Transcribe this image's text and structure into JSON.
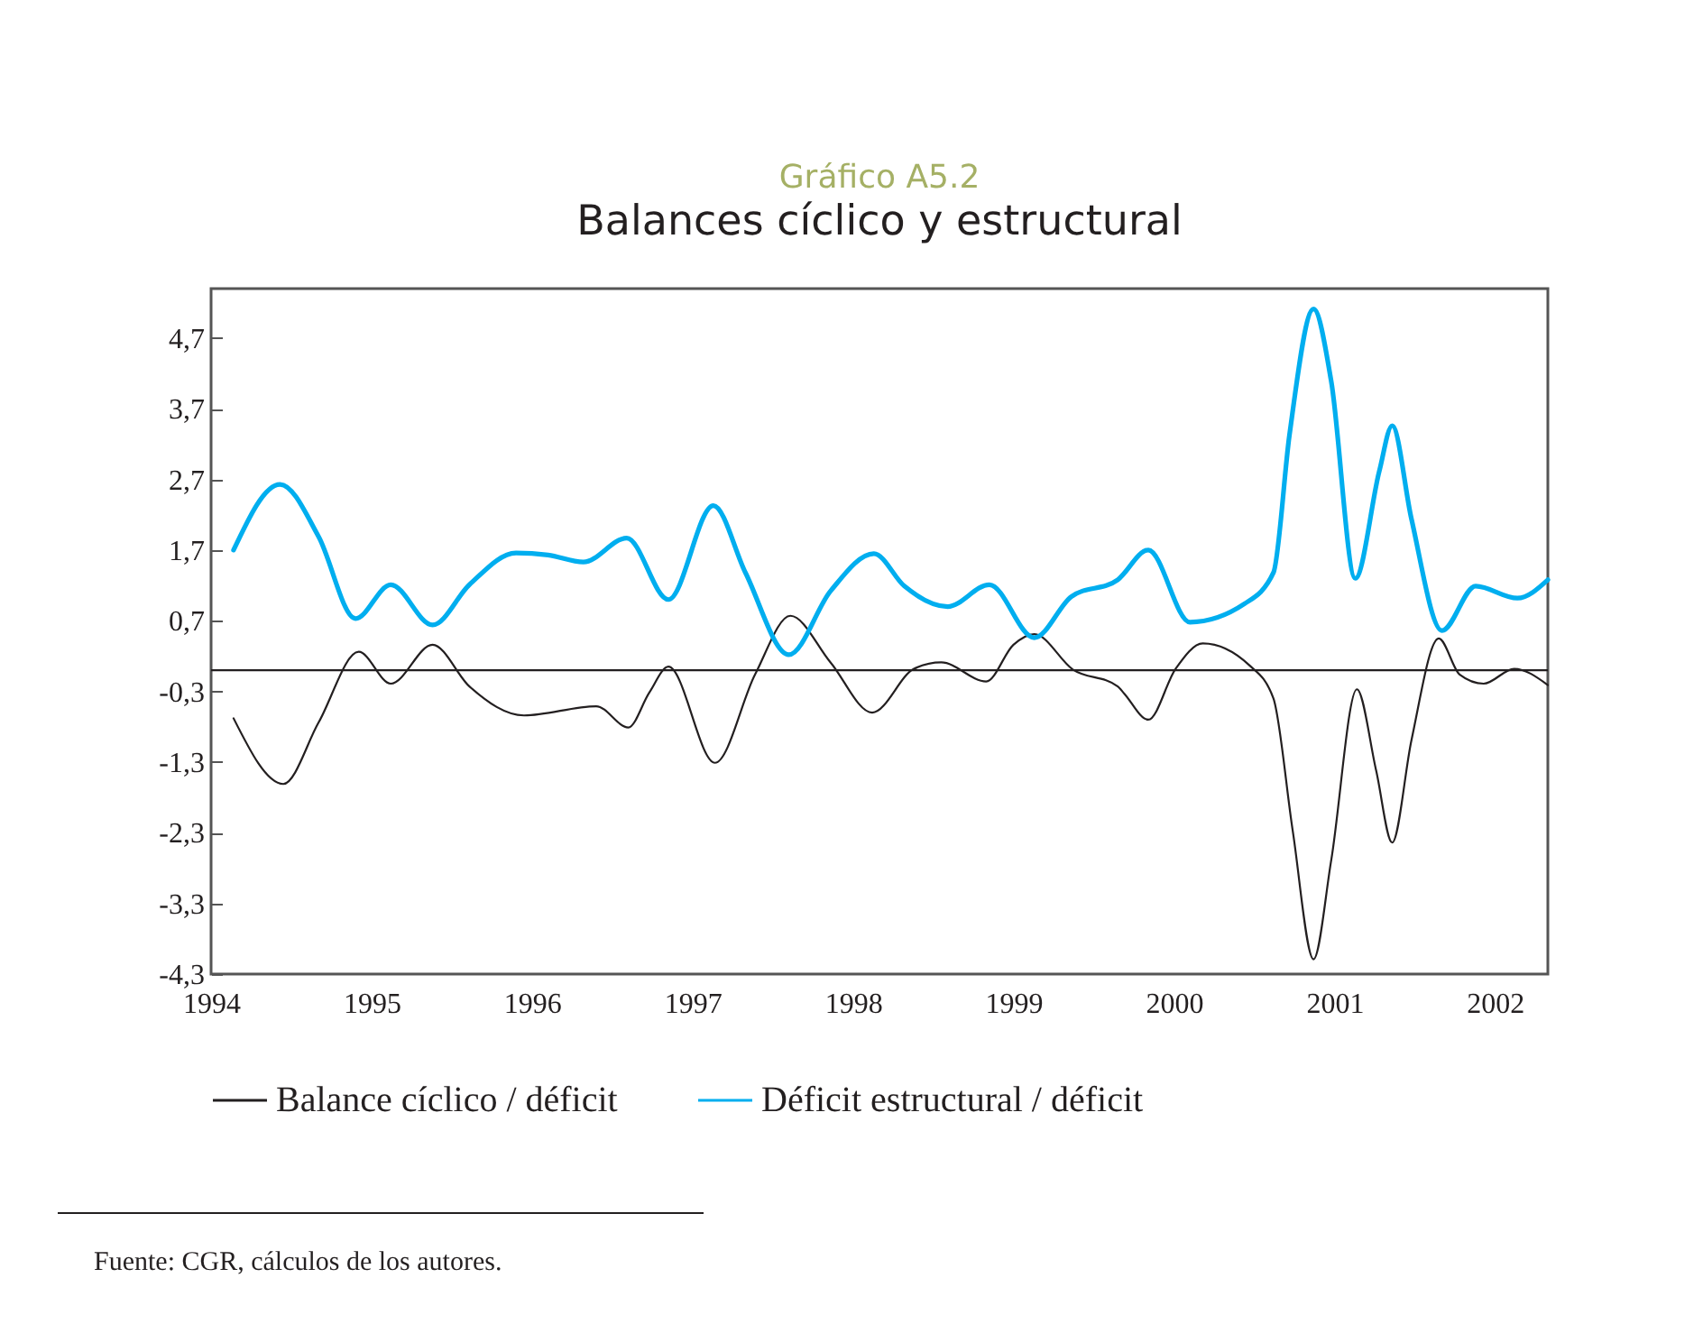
{
  "chart_data": {
    "type": "line",
    "title": "Gráfico A5.2",
    "subtitle": "Balances cíclico y estructural",
    "xlim": [
      1994,
      2002.33
    ],
    "xticks": [
      1994,
      1995,
      1996,
      1997,
      1998,
      1999,
      2000,
      2001,
      2002
    ],
    "ylim": [
      -4.3,
      5.4
    ],
    "yticks": [
      {
        "value": -4.3,
        "label": "-4,3"
      },
      {
        "value": -3.3,
        "label": "-3,3"
      },
      {
        "value": -2.3,
        "label": "-2,3"
      },
      {
        "value": -1.3,
        "label": "-1,3"
      },
      {
        "value": -0.3,
        "label": "-0,3"
      },
      {
        "value": 0.7,
        "label": "0,7"
      },
      {
        "value": 1.7,
        "label": "1,7"
      },
      {
        "value": 2.7,
        "label": "2,7"
      },
      {
        "value": 3.7,
        "label": "3,7"
      },
      {
        "value": 4.7,
        "label": "4,7"
      }
    ],
    "grid": false,
    "legend": "bottom",
    "ref_lines": [
      {
        "axis": "y",
        "value": 0,
        "color": "#231f20"
      }
    ],
    "series": [
      {
        "name": "Balance cíclico / déficit",
        "color": "#231f20",
        "x": [
          1994.14,
          1994.45,
          1994.67,
          1994.92,
          1995.12,
          1995.38,
          1995.61,
          1995.95,
          1996.4,
          1996.6,
          1996.73,
          1996.85,
          1997.14,
          1997.39,
          1997.61,
          1997.86,
          1998.12,
          1998.38,
          1998.55,
          1998.83,
          1999.0,
          1999.13,
          1999.37,
          1999.65,
          1999.69,
          1999.84,
          2000.01,
          2000.18,
          2000.47,
          2000.62,
          2000.74,
          2000.87,
          2000.98,
          2001.14,
          2001.26,
          2001.36,
          2001.48,
          2001.65,
          2001.78,
          2001.93,
          2002.12,
          2002.33
        ],
        "values": [
          -0.68,
          -1.61,
          -0.74,
          0.26,
          -0.19,
          0.36,
          -0.23,
          -0.64,
          -0.51,
          -0.81,
          -0.32,
          0.05,
          -1.31,
          -0.06,
          0.77,
          0.11,
          -0.6,
          0.02,
          0.11,
          -0.16,
          0.36,
          0.51,
          0.01,
          -0.23,
          -0.33,
          -0.7,
          0.02,
          0.38,
          0.07,
          -0.4,
          -2.27,
          -4.09,
          -2.69,
          -0.27,
          -1.42,
          -2.44,
          -0.99,
          0.45,
          -0.06,
          -0.19,
          0.02,
          -0.21
        ]
      },
      {
        "name": "Déficit estructural / déficit",
        "color": "#00aeef",
        "x": [
          1994.14,
          1994.43,
          1994.67,
          1994.9,
          1995.12,
          1995.38,
          1995.61,
          1995.9,
          1996.1,
          1996.32,
          1996.59,
          1996.85,
          1997.13,
          1997.33,
          1997.6,
          1997.86,
          1998.13,
          1998.32,
          1998.59,
          1998.85,
          1999.13,
          1999.36,
          1999.65,
          1999.84,
          2000.1,
          2000.44,
          2000.62,
          2000.72,
          2000.87,
          2000.98,
          2001.13,
          2001.28,
          2001.36,
          2001.48,
          2001.67,
          2001.88,
          2002.14,
          2002.33
        ],
        "values": [
          1.7,
          2.63,
          1.89,
          0.73,
          1.21,
          0.64,
          1.21,
          1.66,
          1.63,
          1.53,
          1.87,
          1.0,
          2.33,
          1.38,
          0.22,
          1.12,
          1.65,
          1.19,
          0.9,
          1.21,
          0.46,
          1.04,
          1.28,
          1.7,
          0.68,
          0.94,
          1.38,
          3.33,
          5.11,
          4.09,
          1.3,
          2.82,
          3.46,
          2.14,
          0.56,
          1.19,
          1.02,
          1.28
        ]
      }
    ],
    "annotations": [
      "Fuente: CGR, cálculos de los autores."
    ]
  }
}
